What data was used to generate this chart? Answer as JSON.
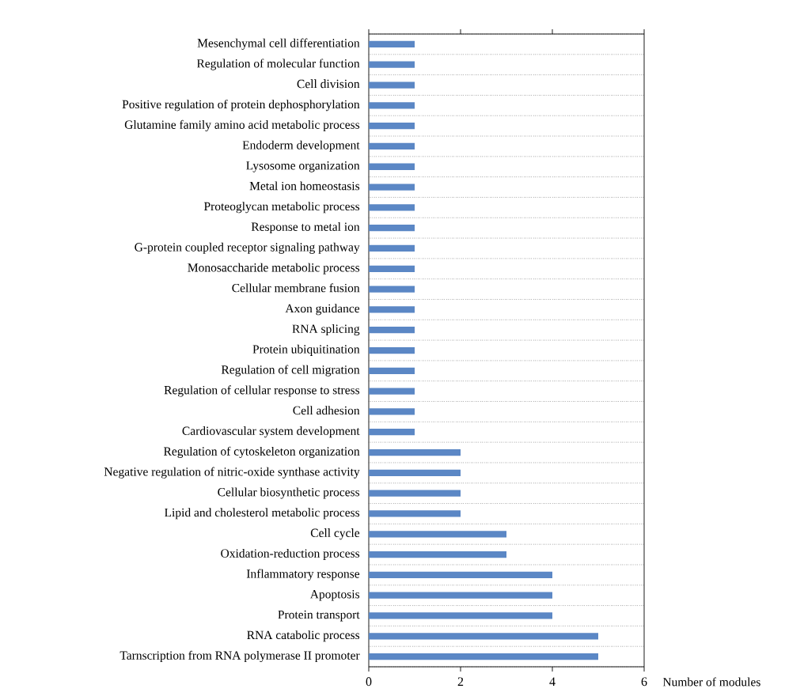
{
  "chart_data": {
    "type": "bar",
    "orientation": "horizontal",
    "xlabel": "Number of modules",
    "categories": [
      "Mesenchymal cell differentiation",
      "Regulation of molecular function",
      "Cell division",
      "Positive regulation of protein dephosphorylation",
      "Glutamine family amino acid metabolic process",
      "Endoderm development",
      "Lysosome organization",
      "Metal ion homeostasis",
      "Proteoglycan metabolic process",
      "Response to metal ion",
      "G-protein coupled receptor signaling pathway",
      "Monosaccharide metabolic process",
      "Cellular membrane fusion",
      "Axon guidance",
      "RNA splicing",
      "Protein ubiquitination",
      "Regulation of cell migration",
      "Regulation of cellular response to stress",
      "Cell adhesion",
      "Cardiovascular system development",
      "Regulation of cytoskeleton organization",
      "Negative regulation of nitric-oxide synthase activity",
      "Cellular biosynthetic process",
      "Lipid and cholesterol metabolic process",
      "Cell cycle",
      "Oxidation-reduction process",
      "Inflammatory response",
      "Apoptosis",
      "Protein transport",
      "RNA catabolic process",
      "Tarnscription from RNA polymerase II promoter"
    ],
    "values": [
      1,
      1,
      1,
      1,
      1,
      1,
      1,
      1,
      1,
      1,
      1,
      1,
      1,
      1,
      1,
      1,
      1,
      1,
      1,
      1,
      2,
      2,
      2,
      2,
      3,
      3,
      4,
      4,
      4,
      5,
      5
    ],
    "color": "#5b87c5",
    "xlim": [
      0,
      6
    ],
    "xticks": [
      0,
      2,
      4,
      6
    ],
    "grid": "y"
  }
}
